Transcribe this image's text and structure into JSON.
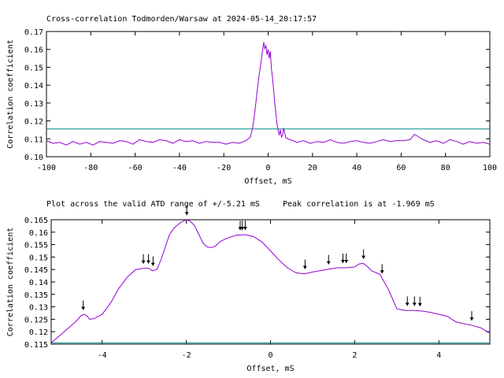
{
  "title": "Cross-correlation Todmorden/Warsaw at 2024-05-14_20:17:57",
  "subtitle_left": "Plot across the valid ATD range of +/-5.21 mS",
  "subtitle_right": "Peak correlation is at -1.969 mS",
  "colors": {
    "series": "#9400d3",
    "threshold": "#008b8b",
    "axis": "#000000",
    "arrow": "#000000"
  },
  "chart_data": [
    {
      "type": "line",
      "xlabel": "Offset, mS",
      "ylabel": "Correlation coefficient",
      "xlim": [
        -100,
        100
      ],
      "ylim": [
        0.1,
        0.17
      ],
      "xticks": [
        -100,
        -80,
        -60,
        -40,
        -20,
        0,
        20,
        40,
        60,
        80,
        100
      ],
      "yticks": [
        0.1,
        0.11,
        0.12,
        0.13,
        0.14,
        0.15,
        0.16,
        0.17
      ],
      "threshold": 0.1155,
      "series": [
        {
          "x": [
            -100,
            -97,
            -94,
            -91,
            -88,
            -85,
            -82,
            -79,
            -76,
            -73,
            -70,
            -67,
            -64,
            -61,
            -58,
            -55,
            -52,
            -49,
            -46,
            -43,
            -40,
            -37,
            -34,
            -31,
            -28,
            -25,
            -22,
            -19,
            -16,
            -13,
            -10,
            -8,
            -7,
            -6,
            -5,
            -4,
            -3,
            -2,
            -1.5,
            -1,
            -0.5,
            0,
            0.5,
            1,
            1.5,
            2,
            3,
            4,
            5,
            5.5,
            6,
            6.5,
            7,
            8,
            10,
            13,
            16,
            19,
            22,
            25,
            28,
            31,
            34,
            37,
            40,
            43,
            46,
            49,
            52,
            55,
            58,
            61,
            64,
            66,
            68,
            70,
            73,
            76,
            79,
            82,
            85,
            88,
            91,
            94,
            97,
            100
          ],
          "y": [
            0.109,
            0.1075,
            0.108,
            0.1065,
            0.1085,
            0.107,
            0.108,
            0.1065,
            0.1085,
            0.108,
            0.1075,
            0.109,
            0.1085,
            0.107,
            0.1095,
            0.1085,
            0.108,
            0.1095,
            0.109,
            0.1075,
            0.1095,
            0.1085,
            0.109,
            0.1075,
            0.1085,
            0.108,
            0.108,
            0.107,
            0.108,
            0.1075,
            0.109,
            0.111,
            0.116,
            0.125,
            0.136,
            0.146,
            0.155,
            0.164,
            0.1605,
            0.162,
            0.157,
            0.16,
            0.155,
            0.159,
            0.149,
            0.144,
            0.13,
            0.118,
            0.112,
            0.115,
            0.111,
            0.112,
            0.116,
            0.1105,
            0.1095,
            0.108,
            0.109,
            0.1075,
            0.1085,
            0.108,
            0.1095,
            0.108,
            0.1075,
            0.1085,
            0.109,
            0.108,
            0.1075,
            0.1085,
            0.1095,
            0.1085,
            0.109,
            0.109,
            0.1095,
            0.1125,
            0.111,
            0.1095,
            0.108,
            0.109,
            0.1075,
            0.1095,
            0.1085,
            0.107,
            0.1085,
            0.1075,
            0.108,
            0.107
          ]
        }
      ]
    },
    {
      "type": "line",
      "xlabel": "Offset, mS",
      "ylabel": "Correlation coefficient",
      "xlim": [
        -5.21,
        5.21
      ],
      "ylim": [
        0.115,
        0.165
      ],
      "xticks": [
        -4,
        -2,
        0,
        2,
        4
      ],
      "yticks": [
        0.115,
        0.12,
        0.125,
        0.13,
        0.135,
        0.14,
        0.145,
        0.15,
        0.155,
        0.16,
        0.165
      ],
      "threshold": 0.1155,
      "series": [
        {
          "x": [
            -5.21,
            -5.0,
            -4.8,
            -4.6,
            -4.5,
            -4.42,
            -4.35,
            -4.3,
            -4.2,
            -4.0,
            -3.8,
            -3.6,
            -3.4,
            -3.2,
            -3.0,
            -2.9,
            -2.8,
            -2.7,
            -2.6,
            -2.5,
            -2.4,
            -2.3,
            -2.2,
            -2.1,
            -2.0,
            -1.969,
            -1.9,
            -1.8,
            -1.7,
            -1.6,
            -1.5,
            -1.4,
            -1.3,
            -1.2,
            -1.0,
            -0.8,
            -0.6,
            -0.4,
            -0.2,
            0.0,
            0.2,
            0.4,
            0.6,
            0.8,
            1.0,
            1.2,
            1.4,
            1.6,
            1.8,
            2.0,
            2.1,
            2.2,
            2.3,
            2.4,
            2.6,
            2.8,
            3.0,
            3.2,
            3.4,
            3.6,
            3.8,
            4.0,
            4.2,
            4.4,
            4.6,
            4.8,
            5.0,
            5.21
          ],
          "y": [
            0.1155,
            0.1185,
            0.1215,
            0.1245,
            0.1265,
            0.127,
            0.1262,
            0.125,
            0.1252,
            0.127,
            0.1315,
            0.1375,
            0.142,
            0.145,
            0.1455,
            0.1455,
            0.1445,
            0.145,
            0.149,
            0.154,
            0.159,
            0.1615,
            0.163,
            0.1642,
            0.165,
            0.1648,
            0.1643,
            0.1625,
            0.159,
            0.1555,
            0.154,
            0.1538,
            0.1545,
            0.1562,
            0.1578,
            0.1588,
            0.159,
            0.1582,
            0.156,
            0.1525,
            0.1488,
            0.1457,
            0.1437,
            0.1432,
            0.144,
            0.1446,
            0.1452,
            0.1457,
            0.1457,
            0.146,
            0.1472,
            0.1475,
            0.1462,
            0.1445,
            0.143,
            0.137,
            0.1292,
            0.1285,
            0.1285,
            0.1283,
            0.1278,
            0.127,
            0.1262,
            0.124,
            0.1232,
            0.1225,
            0.1215,
            0.1195
          ]
        }
      ],
      "markers_x": [
        -4.45,
        -3.02,
        -2.9,
        -2.79,
        -1.99,
        -0.72,
        -0.67,
        -0.6,
        0.82,
        1.38,
        1.72,
        1.8,
        2.21,
        2.65,
        3.25,
        3.42,
        3.55,
        4.78
      ]
    }
  ]
}
